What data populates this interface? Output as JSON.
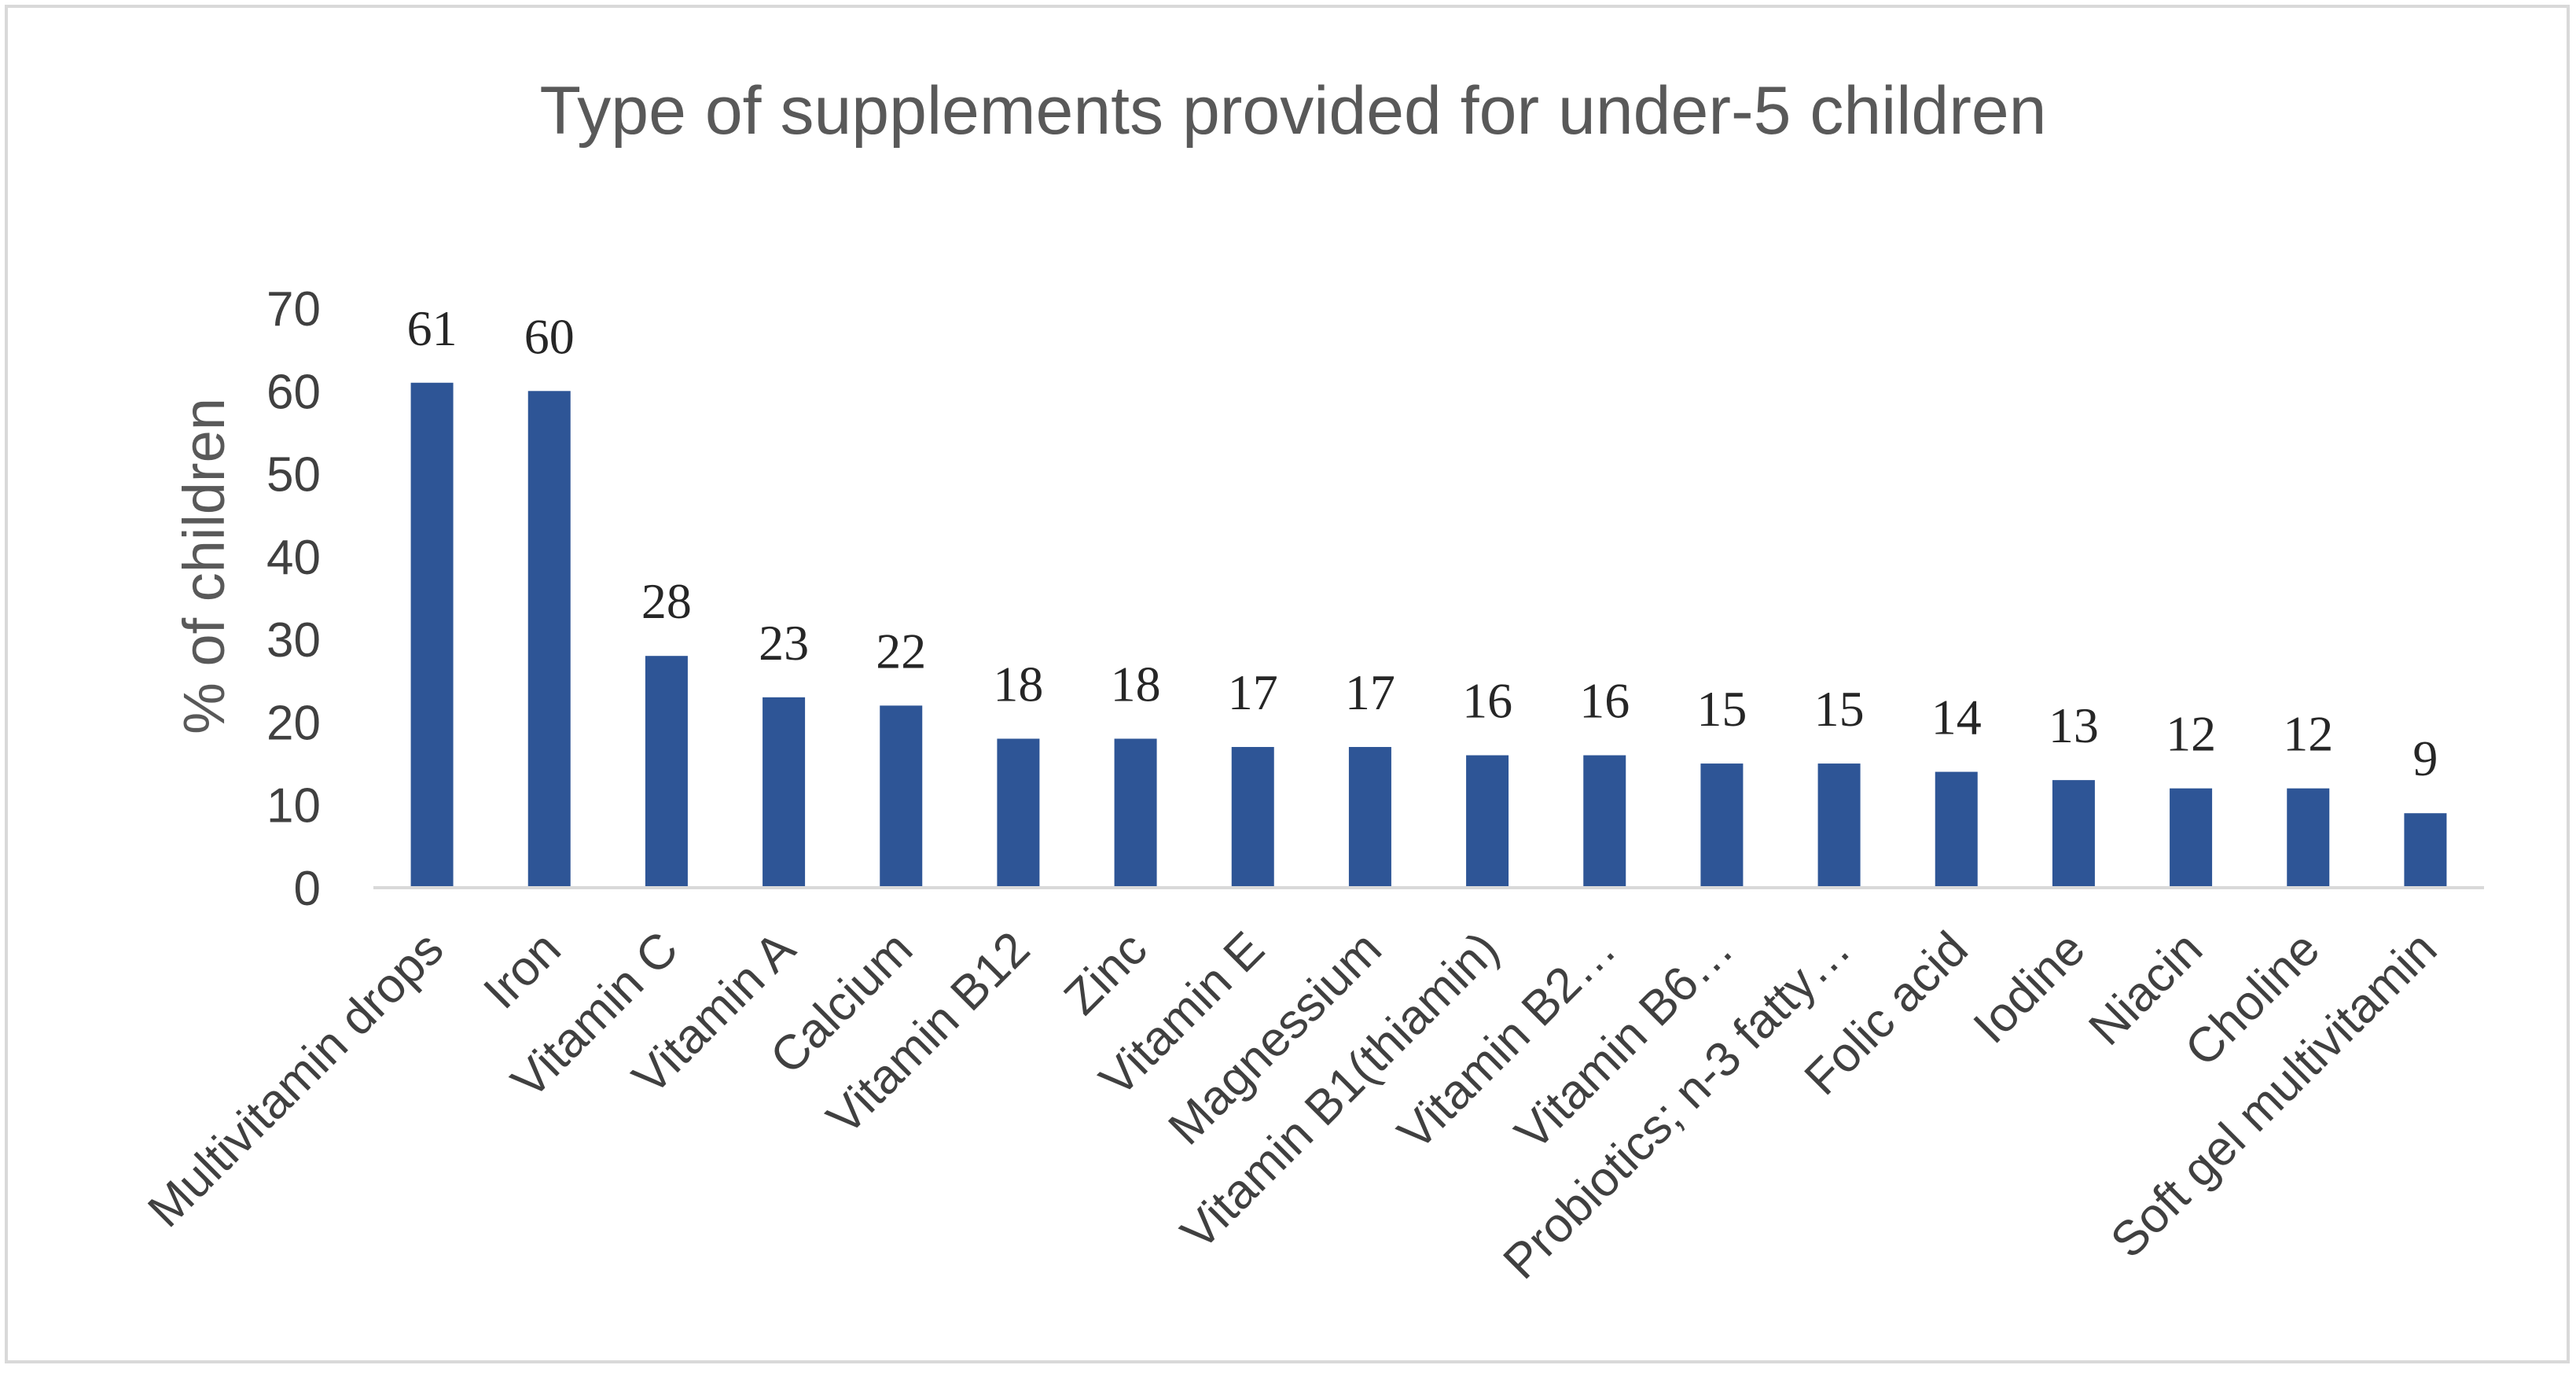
{
  "chart_data": {
    "type": "bar",
    "title": "Type of supplements provided for under-5 children",
    "xlabel": "",
    "ylabel": "% of children",
    "ylim": [
      0,
      70
    ],
    "yticks": [
      0,
      10,
      20,
      30,
      40,
      50,
      60,
      70
    ],
    "grid": false,
    "legend": "none",
    "bar_color": "#2e5596",
    "categories": [
      "Multivitamin drops",
      "Iron",
      "Vitamin C",
      "Vitamin A",
      "Calcium",
      "Vitamin B12",
      "Zinc",
      "Vitamin E",
      "Magnessium",
      "Vitamin B1(thiamin)",
      "Vitamin B2…",
      "Vitamin B6…",
      "Probiotics; n-3 fatty…",
      "Folic acid",
      "Iodine",
      "Niacin",
      "Choline",
      "Soft gel multivitamin"
    ],
    "values": [
      61,
      60,
      28,
      23,
      22,
      18,
      18,
      17,
      17,
      16,
      16,
      15,
      15,
      14,
      13,
      12,
      12,
      9
    ]
  }
}
